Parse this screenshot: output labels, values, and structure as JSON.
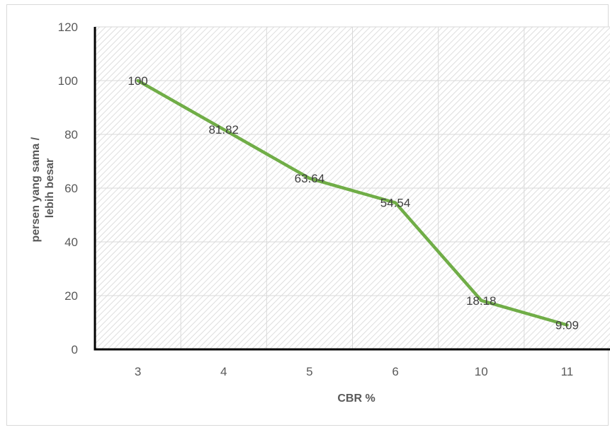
{
  "chart_data": {
    "type": "line",
    "categories": [
      "3",
      "4",
      "5",
      "6",
      "10",
      "11"
    ],
    "series": [
      {
        "values": [
          100,
          81.82,
          63.64,
          54.54,
          18.18,
          9.09
        ]
      }
    ],
    "data_labels": [
      "100",
      "81.82",
      "63.64",
      "54.54",
      "18.18",
      "9.09"
    ],
    "title": "",
    "xlabel": "CBR %",
    "ylabel_lines": [
      "persen yang sama /",
      "lebih besar"
    ],
    "ylim": [
      0,
      120
    ],
    "yticks": [
      0,
      20,
      40,
      60,
      80,
      100,
      120
    ],
    "grid": true,
    "line_color": "#70ad47"
  }
}
